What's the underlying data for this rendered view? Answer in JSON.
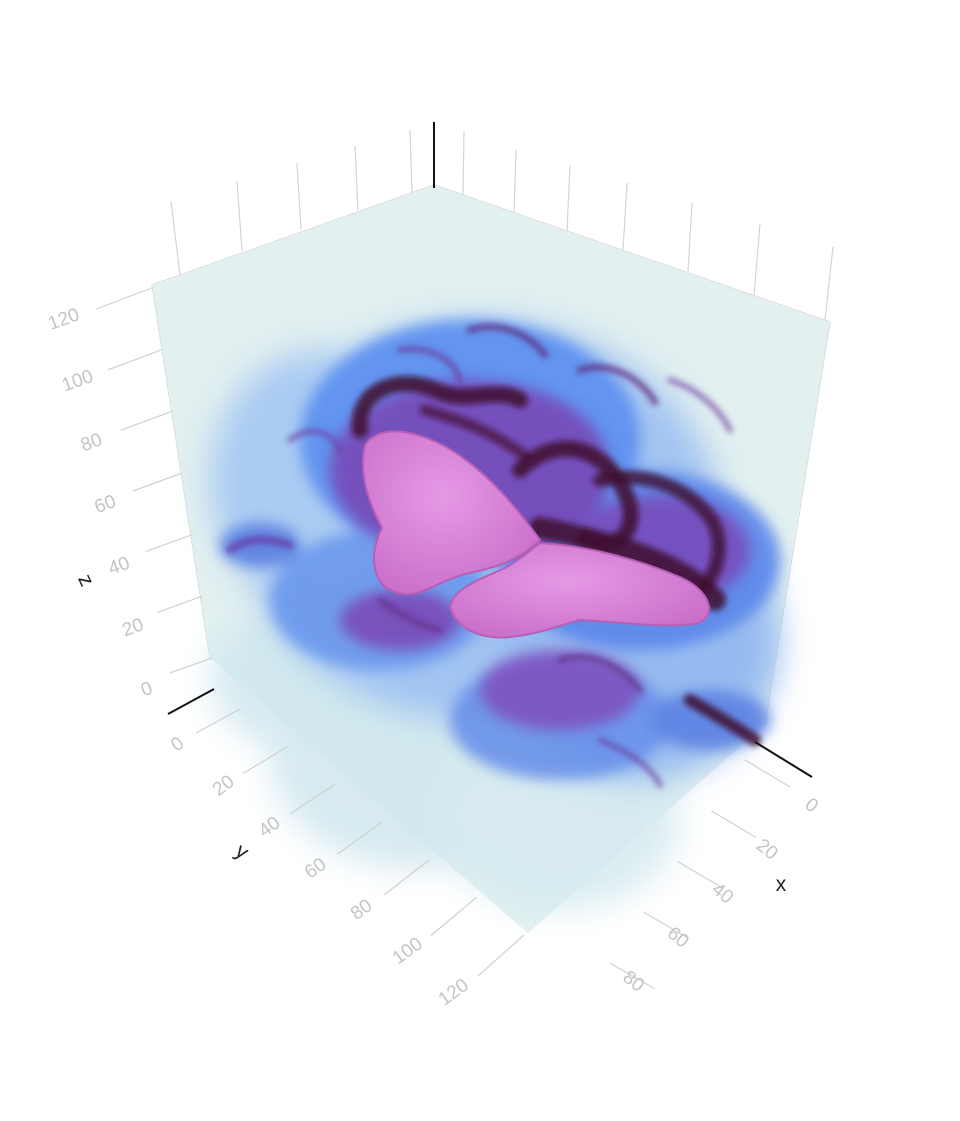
{
  "chart_data": {
    "type": "volume",
    "title": "",
    "axes": {
      "x": {
        "label": "x",
        "ticks": [
          "0",
          "20",
          "40",
          "60",
          "80"
        ],
        "range": [
          0,
          90
        ]
      },
      "y": {
        "label": "y",
        "ticks": [
          "0",
          "20",
          "40",
          "60",
          "80",
          "100",
          "120"
        ],
        "range": [
          0,
          128
        ]
      },
      "z": {
        "label": "z",
        "ticks": [
          "0",
          "20",
          "40",
          "60",
          "80",
          "100",
          "120"
        ],
        "range": [
          0,
          128
        ]
      }
    },
    "grid": true,
    "legend": "none",
    "colors": {
      "box_face": "#e2f0f0",
      "low_density": "#cfe7ee",
      "mid_density": "#5b8ff0",
      "high_density": "#7a3fb0",
      "peak_density": "#3e0a2e",
      "isosurface": "#d67fd6"
    }
  }
}
